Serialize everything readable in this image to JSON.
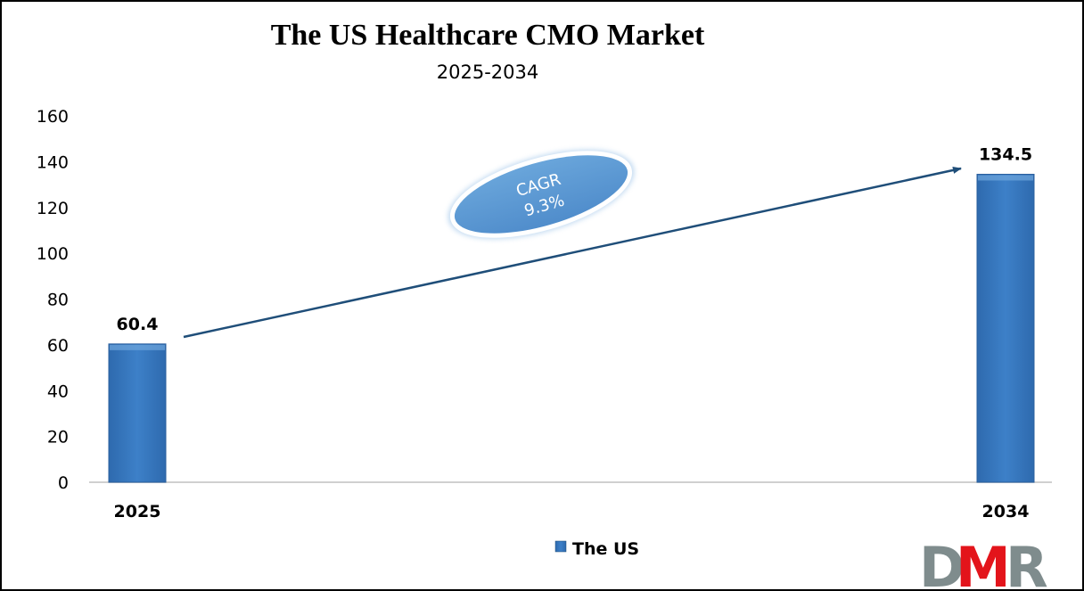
{
  "chart_data": {
    "type": "bar",
    "title": "The US Healthcare CMO Market",
    "subtitle": "2025-2034",
    "categories": [
      "2025",
      "2034"
    ],
    "series": [
      {
        "name": "The US",
        "values": [
          60.4,
          134.5
        ],
        "color": "#3a7bc4"
      }
    ],
    "data_labels": [
      "60.4",
      "134.5"
    ],
    "xlabel": "",
    "ylabel": "",
    "ylim": [
      0,
      160
    ],
    "yticks": [
      0,
      20,
      40,
      60,
      80,
      100,
      120,
      140,
      160
    ],
    "grid": false,
    "legend_position": "bottom",
    "annotation": {
      "label": "CAGR",
      "value": "9.3%",
      "color": "#5b9bd5"
    },
    "trend_arrow_color": "#1f4e79"
  },
  "logo": {
    "letters": [
      "D",
      "M",
      "R"
    ],
    "colors": {
      "gray": "#7f8c8d",
      "red": "#e3141b"
    }
  }
}
